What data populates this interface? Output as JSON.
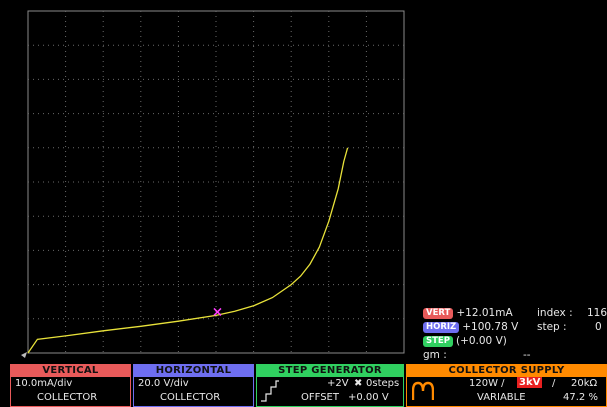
{
  "readouts": {
    "vert": {
      "tag": "VERT",
      "value": "+12.01mA",
      "key": "index :",
      "num": "116"
    },
    "horiz": {
      "tag": "HORIZ",
      "value": "+100.78 V",
      "key": "step :",
      "num": "0"
    },
    "step": {
      "tag": "STEP",
      "value": "(+0.00 V)"
    },
    "gm": {
      "label": "gm :",
      "value": "--"
    }
  },
  "panels": {
    "vertical": {
      "title": "VERTICAL",
      "scale": "10.0mA/div",
      "source": "COLLECTOR"
    },
    "horizontal": {
      "title": "HORIZONTAL",
      "scale": "20.0 V/div",
      "source": "COLLECTOR"
    },
    "step_generator": {
      "title": "STEP GENERATOR",
      "amplitude": "+2V",
      "times": "✖",
      "steps": "0steps",
      "offset_label": "OFFSET",
      "offset_value": "+0.00 V"
    },
    "collector_supply": {
      "title": "COLLECTOR SUPPLY",
      "power": "120W /",
      "voltage": "3kV",
      "sep": "/",
      "resistance": "20kΩ",
      "mode": "VARIABLE",
      "percent": "47.2 %"
    }
  },
  "colors": {
    "trace": "#e8e23a",
    "cursor": "#ff3cff",
    "graticule": "#6a6a6a",
    "vert": "#e85a5a",
    "horiz": "#6e6ef0",
    "step": "#30d060",
    "collector": "#ff8a00"
  },
  "chart_data": {
    "type": "line",
    "title": "",
    "xlabel": "",
    "ylabel": "",
    "x_unit": "V",
    "y_unit": "mA",
    "xlim": [
      0,
      200
    ],
    "ylim": [
      0,
      100
    ],
    "series": [
      {
        "x": [
          0,
          5,
          20,
          40,
          60,
          80,
          100,
          110,
          120,
          130,
          140,
          145,
          150,
          155,
          160,
          165,
          168,
          170
        ],
        "y": [
          0,
          4,
          5,
          6.5,
          7.8,
          9.3,
          11,
          12.2,
          13.8,
          16.2,
          20,
          22.5,
          26,
          31,
          38.5,
          48,
          56,
          60
        ]
      }
    ],
    "cursor": {
      "x": 100.78,
      "y": 12.01
    }
  }
}
